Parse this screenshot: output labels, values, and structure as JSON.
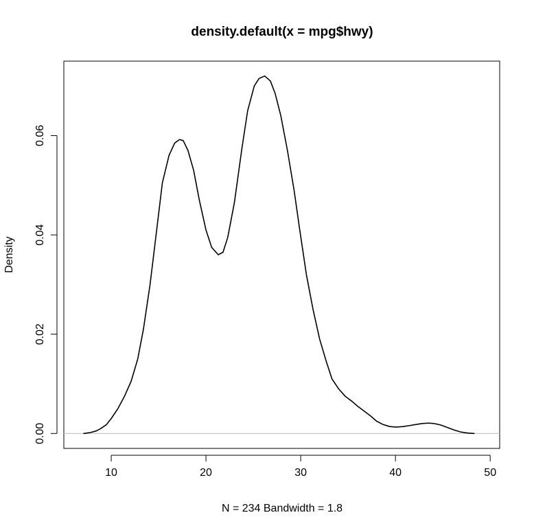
{
  "chart_data": {
    "type": "line",
    "title": "density.default(x = mpg$hwy)",
    "xlabel": "N = 234   Bandwidth = 1.8",
    "ylabel": "Density",
    "xlim": [
      5,
      51
    ],
    "ylim": [
      -0.003,
      0.075
    ],
    "x_ticks": [
      10,
      20,
      30,
      40,
      50
    ],
    "y_ticks": [
      0.0,
      0.02,
      0.04,
      0.06
    ],
    "x_tick_labels": [
      "10",
      "20",
      "30",
      "40",
      "50"
    ],
    "y_tick_labels": [
      "0.00",
      "0.02",
      "0.04",
      "0.06"
    ],
    "grid": false,
    "baseline": {
      "y": 0,
      "color": "#c0c0c0"
    },
    "line_color": "#000000",
    "series": [
      {
        "x": [
          7.1,
          7.8,
          8.4,
          8.9,
          9.5,
          10.0,
          10.7,
          11.4,
          12.1,
          12.8,
          13.4,
          14.1,
          14.8,
          15.4,
          16.1,
          16.7,
          17.2,
          17.6,
          18.1,
          18.7,
          19.3,
          20.0,
          20.6,
          21.3,
          21.8,
          22.3,
          23.0,
          23.8,
          24.4,
          25.1,
          25.6,
          26.2,
          26.8,
          27.3,
          27.9,
          28.6,
          29.3,
          29.9,
          30.6,
          31.3,
          32.0,
          32.7,
          33.3,
          34.0,
          34.7,
          35.4,
          36.0,
          36.7,
          37.4,
          38.0,
          38.7,
          39.4,
          40.1,
          40.8,
          41.5,
          42.1,
          42.8,
          43.5,
          44.1,
          44.8,
          45.5,
          46.2,
          46.9,
          47.6,
          48.3
        ],
        "y": [
          0.0,
          0.0002,
          0.0005,
          0.001,
          0.0018,
          0.003,
          0.005,
          0.0075,
          0.0105,
          0.015,
          0.021,
          0.03,
          0.041,
          0.0505,
          0.056,
          0.0585,
          0.0592,
          0.059,
          0.057,
          0.053,
          0.047,
          0.041,
          0.0375,
          0.036,
          0.0365,
          0.0395,
          0.0465,
          0.0575,
          0.065,
          0.07,
          0.0715,
          0.072,
          0.071,
          0.0685,
          0.064,
          0.057,
          0.049,
          0.041,
          0.032,
          0.025,
          0.019,
          0.0145,
          0.011,
          0.009,
          0.0075,
          0.0065,
          0.0055,
          0.0045,
          0.0035,
          0.0025,
          0.0018,
          0.0014,
          0.0013,
          0.0014,
          0.0016,
          0.0018,
          0.002,
          0.0021,
          0.002,
          0.0017,
          0.0012,
          0.0007,
          0.0003,
          0.0001,
          0.0
        ]
      }
    ]
  }
}
